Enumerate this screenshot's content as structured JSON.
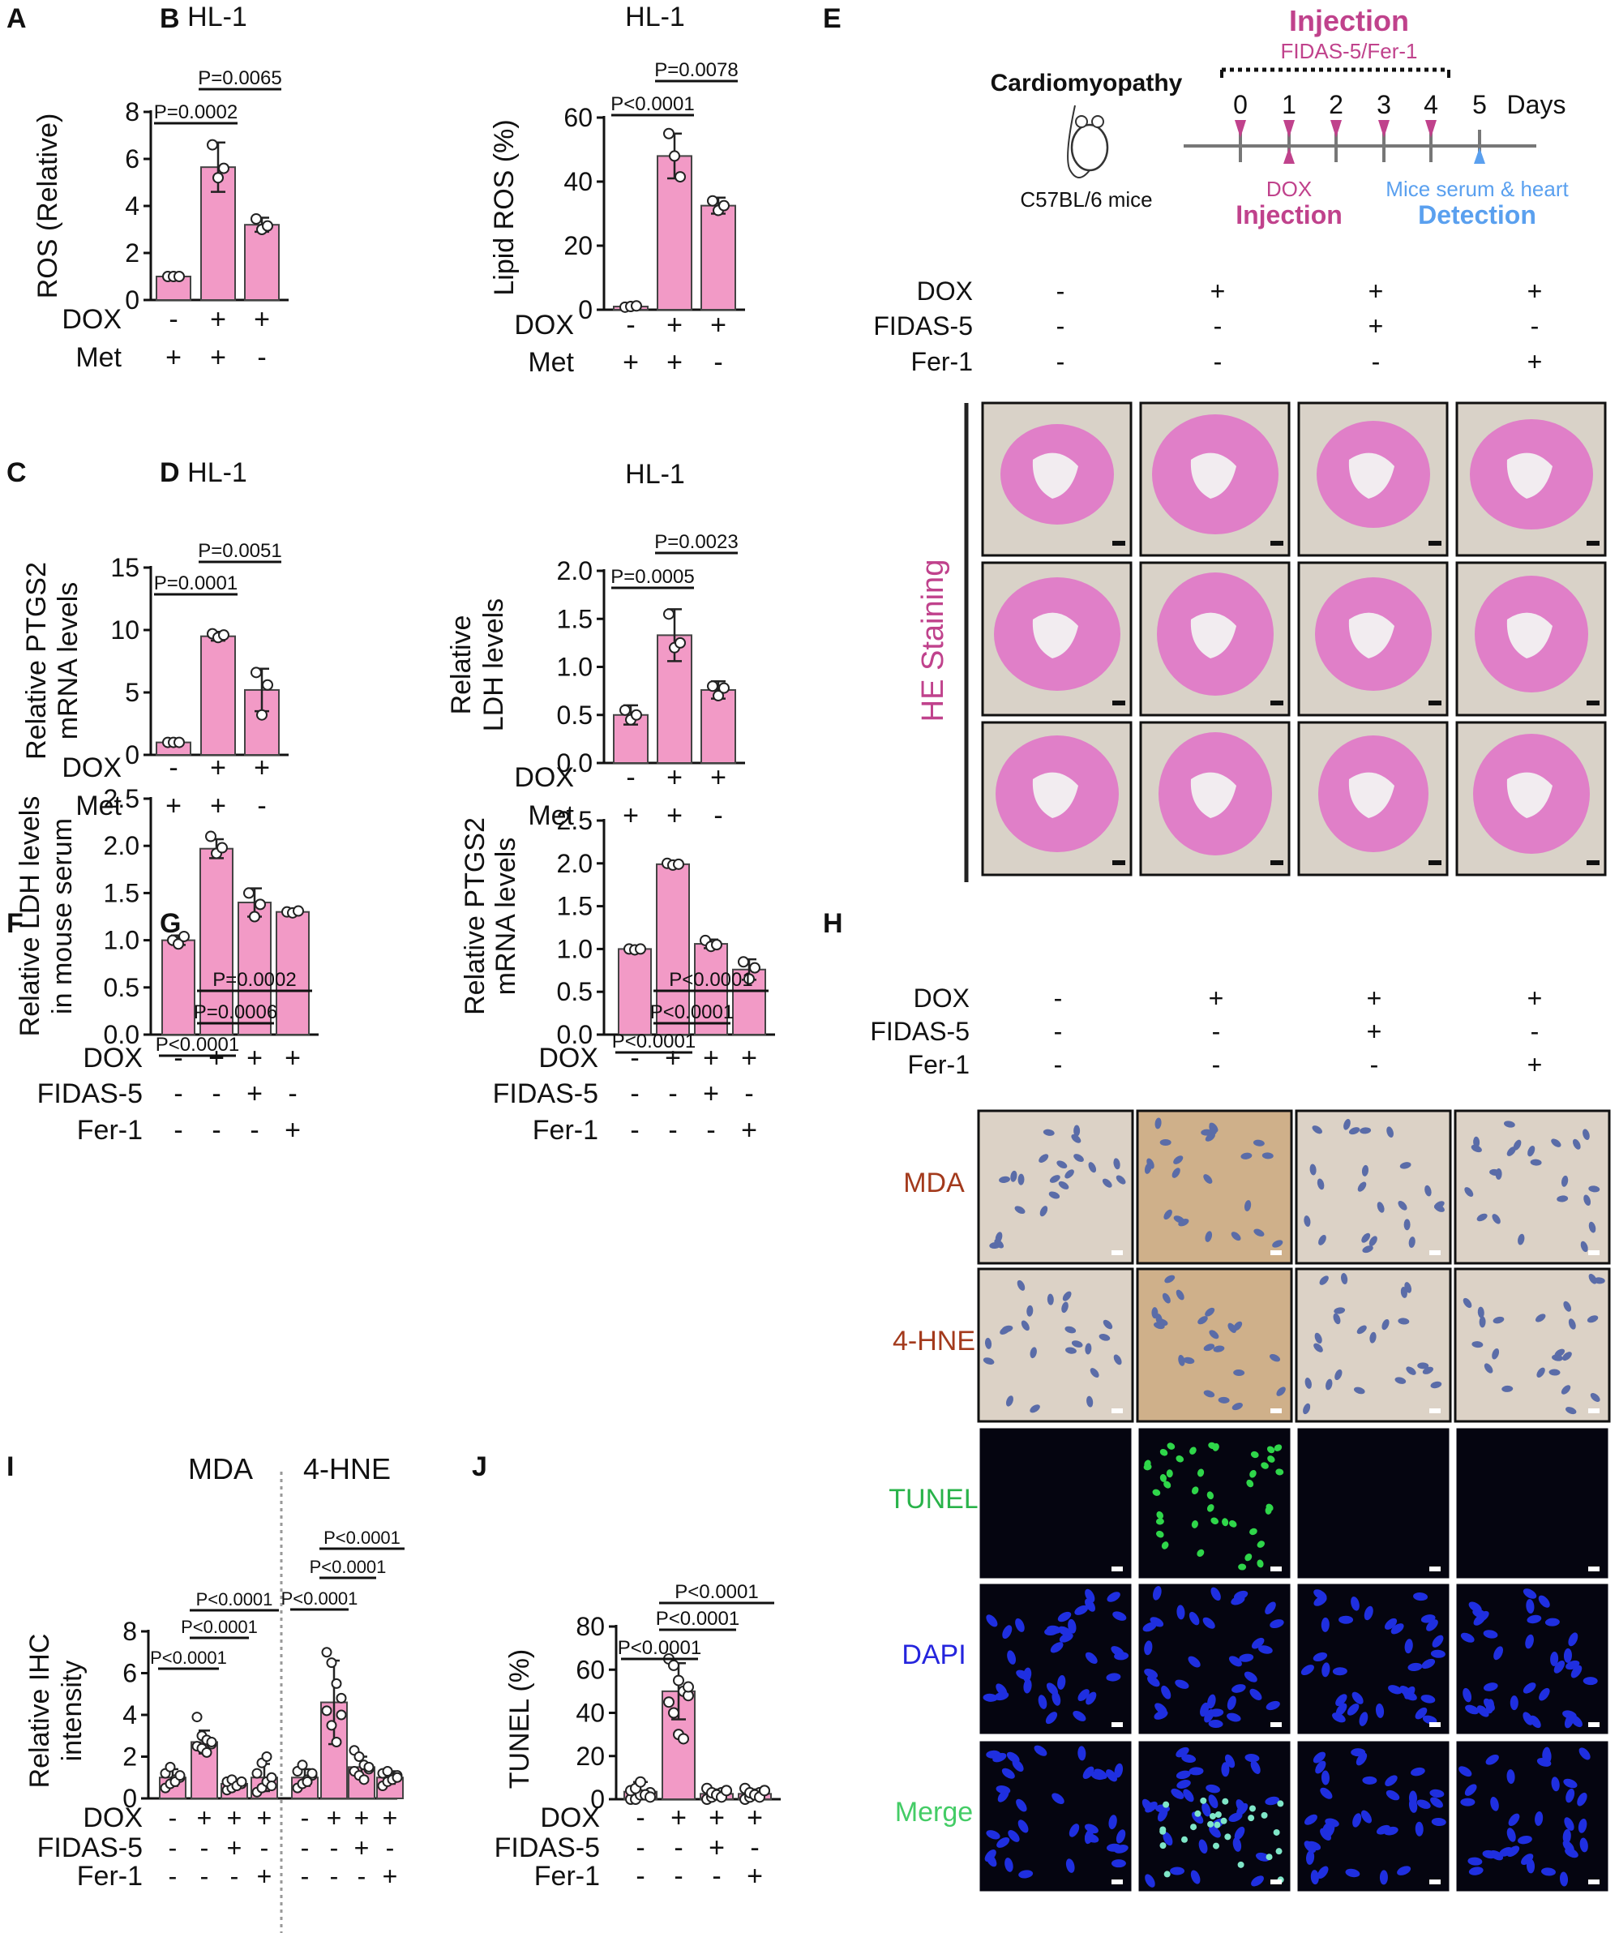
{
  "colors": {
    "bar": "#f29ac6",
    "bar_stroke": "#444444",
    "magenta": "#c0428c",
    "blue_label": "#5aa0ef",
    "mda_label": "#a33a1c",
    "tunel_label": "#29b34a",
    "dapi_label": "#2424dd",
    "merge_label": "#44cc66",
    "he_bg": "#d9d2c8",
    "he_tissue": "#e07fc8",
    "ihc_bg": "#dcd2c6",
    "nuclei": "#1f2fe0",
    "green_dots": "#2fd64a"
  },
  "panels": [
    {
      "letter": "A",
      "title": "HL-1",
      "ylabel": "ROS (Relative)",
      "ylim": [
        0,
        8
      ],
      "yticks": [
        "0",
        "2",
        "4",
        "6",
        "8"
      ],
      "ytick_values": [
        0,
        2,
        4,
        6,
        8
      ],
      "values": [
        1.0,
        5.65,
        3.2
      ],
      "errors": [
        0.05,
        1.05,
        0.3
      ],
      "points": [
        [
          1.0,
          1.0,
          1.0
        ],
        [
          6.6,
          5.2,
          5.6
        ],
        [
          3.45,
          3.0,
          3.15
        ]
      ],
      "rows": [
        {
          "label": "DOX",
          "signs": [
            "-",
            "+",
            "+"
          ]
        },
        {
          "label": "Met",
          "signs": [
            "+",
            "+",
            "-"
          ]
        }
      ],
      "sig": [
        {
          "label": "P=0.0002",
          "from": 0,
          "to": 1,
          "level": 0
        },
        {
          "label": "P=0.0065",
          "from": 1,
          "to": 2,
          "level": 1
        }
      ]
    },
    {
      "letter": "B",
      "title": "HL-1",
      "ylabel": "Lipid ROS (%)",
      "ylim": [
        0,
        60
      ],
      "yticks": [
        "0",
        "20",
        "40",
        "60"
      ],
      "ytick_values": [
        0,
        20,
        40,
        60
      ],
      "values": [
        1.0,
        48.0,
        32.5
      ],
      "errors": [
        0.4,
        7.0,
        2.5
      ],
      "points": [
        [
          0.8,
          1.0,
          1.2
        ],
        [
          55.0,
          48.0,
          41.5
        ],
        [
          34.0,
          31.0,
          32.5
        ]
      ],
      "rows": [
        {
          "label": "DOX",
          "signs": [
            "-",
            "+",
            "+"
          ]
        },
        {
          "label": "Met",
          "signs": [
            "+",
            "+",
            "-"
          ]
        }
      ],
      "sig": [
        {
          "label": "P<0.0001",
          "from": 0,
          "to": 1,
          "level": 0
        },
        {
          "label": "P=0.0078",
          "from": 1,
          "to": 2,
          "level": 1
        }
      ]
    },
    {
      "letter": "C",
      "title": "HL-1",
      "ylabel": "Relative PTGS2",
      "ylabel2": "mRNA levels",
      "ylim": [
        0,
        15
      ],
      "yticks": [
        "0",
        "5",
        "10",
        "15"
      ],
      "ytick_values": [
        0,
        5,
        10,
        15
      ],
      "values": [
        1.0,
        9.5,
        5.2
      ],
      "errors": [
        0.05,
        0.35,
        1.7
      ],
      "points": [
        [
          1.0,
          1.0,
          1.0
        ],
        [
          9.7,
          9.4,
          9.6
        ],
        [
          6.6,
          3.2,
          5.6
        ]
      ],
      "rows": [
        {
          "label": "DOX",
          "signs": [
            "-",
            "+",
            "+"
          ]
        },
        {
          "label": "Met",
          "signs": [
            "+",
            "+",
            "-"
          ]
        }
      ],
      "sig": [
        {
          "label": "P=0.0001",
          "from": 0,
          "to": 1,
          "level": 0
        },
        {
          "label": "P=0.0051",
          "from": 1,
          "to": 2,
          "level": 1
        }
      ]
    },
    {
      "letter": "D",
      "title": "HL-1",
      "ylabel": "Relative",
      "ylabel2": "LDH levels",
      "ylim": [
        0,
        2.0
      ],
      "yticks": [
        "0.0",
        "0.5",
        "1.0",
        "1.5",
        "2.0"
      ],
      "ytick_values": [
        0,
        0.5,
        1.0,
        1.5,
        2.0
      ],
      "values": [
        0.5,
        1.33,
        0.76
      ],
      "errors": [
        0.1,
        0.27,
        0.09
      ],
      "points": [
        [
          0.55,
          0.45,
          0.5
        ],
        [
          1.55,
          1.2,
          1.25
        ],
        [
          0.8,
          0.7,
          0.78
        ]
      ],
      "rows": [
        {
          "label": "DOX",
          "signs": [
            "-",
            "+",
            "+"
          ]
        },
        {
          "label": "Met",
          "signs": [
            "+",
            "+",
            "-"
          ]
        }
      ],
      "sig": [
        {
          "label": "P=0.0005",
          "from": 0,
          "to": 1,
          "level": 0
        },
        {
          "label": "P=0.0023",
          "from": 1,
          "to": 2,
          "level": 1
        }
      ]
    },
    {
      "letter": "F",
      "title": "",
      "ylabel": "Relative LDH levels",
      "ylabel2": "in mouse serum",
      "ylim": [
        0,
        2.5
      ],
      "yticks": [
        "0.0",
        "0.5",
        "1.0",
        "1.5",
        "2.0",
        "2.5"
      ],
      "ytick_values": [
        0,
        0.5,
        1.0,
        1.5,
        2.0,
        2.5
      ],
      "values": [
        1.0,
        1.97,
        1.4,
        1.3
      ],
      "errors": [
        0.05,
        0.1,
        0.15,
        0.02
      ],
      "points": [
        [
          1.0,
          0.96,
          1.04
        ],
        [
          2.1,
          1.92,
          1.98
        ],
        [
          1.5,
          1.25,
          1.38
        ],
        [
          1.3,
          1.29,
          1.31
        ]
      ],
      "rows": [
        {
          "label": "DOX",
          "signs": [
            "-",
            "+",
            "+",
            "+"
          ]
        },
        {
          "label": "FIDAS-5",
          "signs": [
            "-",
            "-",
            "+",
            "-"
          ]
        },
        {
          "label": "Fer-1",
          "signs": [
            "-",
            "-",
            "-",
            "+"
          ]
        }
      ],
      "sig": [
        {
          "label": "P<0.0001",
          "from": 0,
          "to": 1,
          "level": 0
        },
        {
          "label": "P=0.0006",
          "from": 1,
          "to": 2,
          "level": 1
        },
        {
          "label": "P=0.0002",
          "from": 1,
          "to": 3,
          "level": 2
        }
      ]
    },
    {
      "letter": "G",
      "title": "",
      "ylabel": "Relative PTGS2",
      "ylabel2": "mRNA levels",
      "ylim": [
        0,
        2.5
      ],
      "yticks": [
        "0.0",
        "0.5",
        "1.0",
        "1.5",
        "2.0",
        "2.5"
      ],
      "ytick_values": [
        0,
        0.5,
        1.0,
        1.5,
        2.0,
        2.5
      ],
      "values": [
        1.0,
        1.99,
        1.06,
        0.76
      ],
      "errors": [
        0.01,
        0.02,
        0.05,
        0.12
      ],
      "points": [
        [
          1.0,
          0.99,
          1.0
        ],
        [
          2.0,
          1.98,
          1.99
        ],
        [
          1.1,
          1.03,
          1.05
        ],
        [
          0.85,
          0.65,
          0.78
        ]
      ],
      "rows": [
        {
          "label": "DOX",
          "signs": [
            "-",
            "+",
            "+",
            "+"
          ]
        },
        {
          "label": "FIDAS-5",
          "signs": [
            "-",
            "-",
            "+",
            "-"
          ]
        },
        {
          "label": "Fer-1",
          "signs": [
            "-",
            "-",
            "-",
            "+"
          ]
        }
      ],
      "sig": [
        {
          "label": "P<0.0001",
          "from": 0,
          "to": 1,
          "level": 0
        },
        {
          "label": "P<0.0001",
          "from": 1,
          "to": 2,
          "level": 1
        },
        {
          "label": "P<0.0001",
          "from": 1,
          "to": 3,
          "level": 2
        }
      ]
    },
    {
      "letter": "J",
      "title": "",
      "ylabel": "TUNEL (%)",
      "ylim": [
        0,
        80
      ],
      "yticks": [
        "0",
        "20",
        "40",
        "60",
        "80"
      ],
      "ytick_values": [
        0,
        20,
        40,
        60,
        80
      ],
      "values": [
        3.5,
        50.0,
        2.5,
        2.5
      ],
      "errors": [
        4.5,
        13.0,
        2.0,
        2.0
      ],
      "points": [
        [
          0,
          0,
          2,
          2,
          3,
          4,
          5,
          8,
          2,
          1
        ],
        [
          65,
          62,
          55,
          50,
          48,
          45,
          40,
          30,
          28,
          52
        ],
        [
          0,
          1,
          2,
          3,
          4,
          5,
          3,
          2,
          1,
          4
        ],
        [
          0,
          1,
          2,
          3,
          4,
          5,
          3,
          2,
          1,
          4
        ]
      ],
      "rows": [
        {
          "label": "DOX",
          "signs": [
            "-",
            "+",
            "+",
            "+"
          ]
        },
        {
          "label": "FIDAS-5",
          "signs": [
            "-",
            "-",
            "+",
            "-"
          ]
        },
        {
          "label": "Fer-1",
          "signs": [
            "-",
            "-",
            "-",
            "+"
          ]
        }
      ],
      "sig": [
        {
          "label": "P<0.0001",
          "from": 0,
          "to": 1,
          "level": 0
        },
        {
          "label": "P<0.0001",
          "from": 1,
          "to": 2,
          "level": 1
        },
        {
          "label": "P<0.0001",
          "from": 1,
          "to": 3,
          "level": 2
        }
      ]
    }
  ],
  "panel_i": {
    "letter": "I",
    "ylabel": "Relative IHC",
    "ylabel2": "intensity",
    "ylim": [
      0,
      8
    ],
    "yticks": [
      "0",
      "2",
      "4",
      "6",
      "8"
    ],
    "ytick_values": [
      0,
      2,
      4,
      6,
      8
    ],
    "groups": [
      {
        "name": "MDA",
        "values": [
          1.0,
          2.7,
          0.7,
          1.0
        ],
        "errors": [
          0.4,
          0.55,
          0.2,
          0.65
        ],
        "points": [
          [
            0.5,
            0.7,
            0.9,
            1.0,
            1.2,
            1.5,
            0.8,
            1.1
          ],
          [
            3.9,
            3.0,
            2.8,
            2.6,
            2.5,
            2.4,
            2.2,
            2.7
          ],
          [
            0.4,
            0.5,
            0.6,
            0.7,
            0.8,
            0.9,
            0.6,
            0.8
          ],
          [
            0.3,
            0.5,
            0.8,
            1.0,
            1.2,
            1.7,
            2.0,
            0.6
          ]
        ],
        "sig": [
          {
            "label": "P<0.0001",
            "from": 0,
            "to": 1,
            "level": 0
          },
          {
            "label": "P<0.0001",
            "from": 1,
            "to": 2,
            "level": 1
          },
          {
            "label": "P<0.0001",
            "from": 1,
            "to": 3,
            "level": 2
          }
        ]
      },
      {
        "name": "4-HNE",
        "values": [
          1.0,
          4.6,
          1.5,
          1.0
        ],
        "errors": [
          0.4,
          2.0,
          0.5,
          0.3
        ],
        "points": [
          [
            0.5,
            0.7,
            0.9,
            1.1,
            1.3,
            1.6,
            0.8,
            1.2
          ],
          [
            7.0,
            6.5,
            5.5,
            4.8,
            4.2,
            3.5,
            2.7,
            4.0
          ],
          [
            2.3,
            2.0,
            1.6,
            1.4,
            1.3,
            1.1,
            0.9,
            1.5
          ],
          [
            0.6,
            0.8,
            1.0,
            1.1,
            1.2,
            1.3,
            0.9,
            1.0
          ]
        ],
        "sig": [
          {
            "label": "P<0.0001",
            "from": 0,
            "to": 1,
            "level": 0
          },
          {
            "label": "P<0.0001",
            "from": 1,
            "to": 2,
            "level": 1
          },
          {
            "label": "P<0.0001",
            "from": 1,
            "to": 3,
            "level": 2
          }
        ]
      }
    ],
    "rows": [
      {
        "label": "DOX",
        "signs": [
          "-",
          "+",
          "+",
          "+"
        ]
      },
      {
        "label": "FIDAS-5",
        "signs": [
          "-",
          "-",
          "+",
          "-"
        ]
      },
      {
        "label": "Fer-1",
        "signs": [
          "-",
          "-",
          "-",
          "+"
        ]
      }
    ]
  },
  "panel_e": {
    "letter": "E",
    "injection_top": "Injection",
    "drugs": "FIDAS-5/Fer-1",
    "model": "Cardiomyopathy",
    "mouse": "C57BL/6 mice",
    "days": [
      "0",
      "1",
      "2",
      "3",
      "4",
      "5"
    ],
    "days_label": "Days",
    "dox": "DOX",
    "injection_bottom": "Injection",
    "serum": "Mice serum & heart",
    "detection": "Detection",
    "rows": [
      {
        "label": "DOX",
        "signs": [
          "-",
          "+",
          "+",
          "+"
        ]
      },
      {
        "label": "FIDAS-5",
        "signs": [
          "-",
          "-",
          "+",
          "-"
        ]
      },
      {
        "label": "Fer-1",
        "signs": [
          "-",
          "-",
          "-",
          "+"
        ]
      }
    ],
    "stain_label": "HE Staining"
  },
  "panel_h": {
    "letter": "H",
    "rows": [
      {
        "label": "DOX",
        "signs": [
          "-",
          "+",
          "+",
          "+"
        ]
      },
      {
        "label": "FIDAS-5",
        "signs": [
          "-",
          "-",
          "+",
          "-"
        ]
      },
      {
        "label": "Fer-1",
        "signs": [
          "-",
          "-",
          "-",
          "+"
        ]
      }
    ],
    "stains": [
      "MDA",
      "4-HNE",
      "TUNEL",
      "DAPI",
      "Merge"
    ]
  }
}
